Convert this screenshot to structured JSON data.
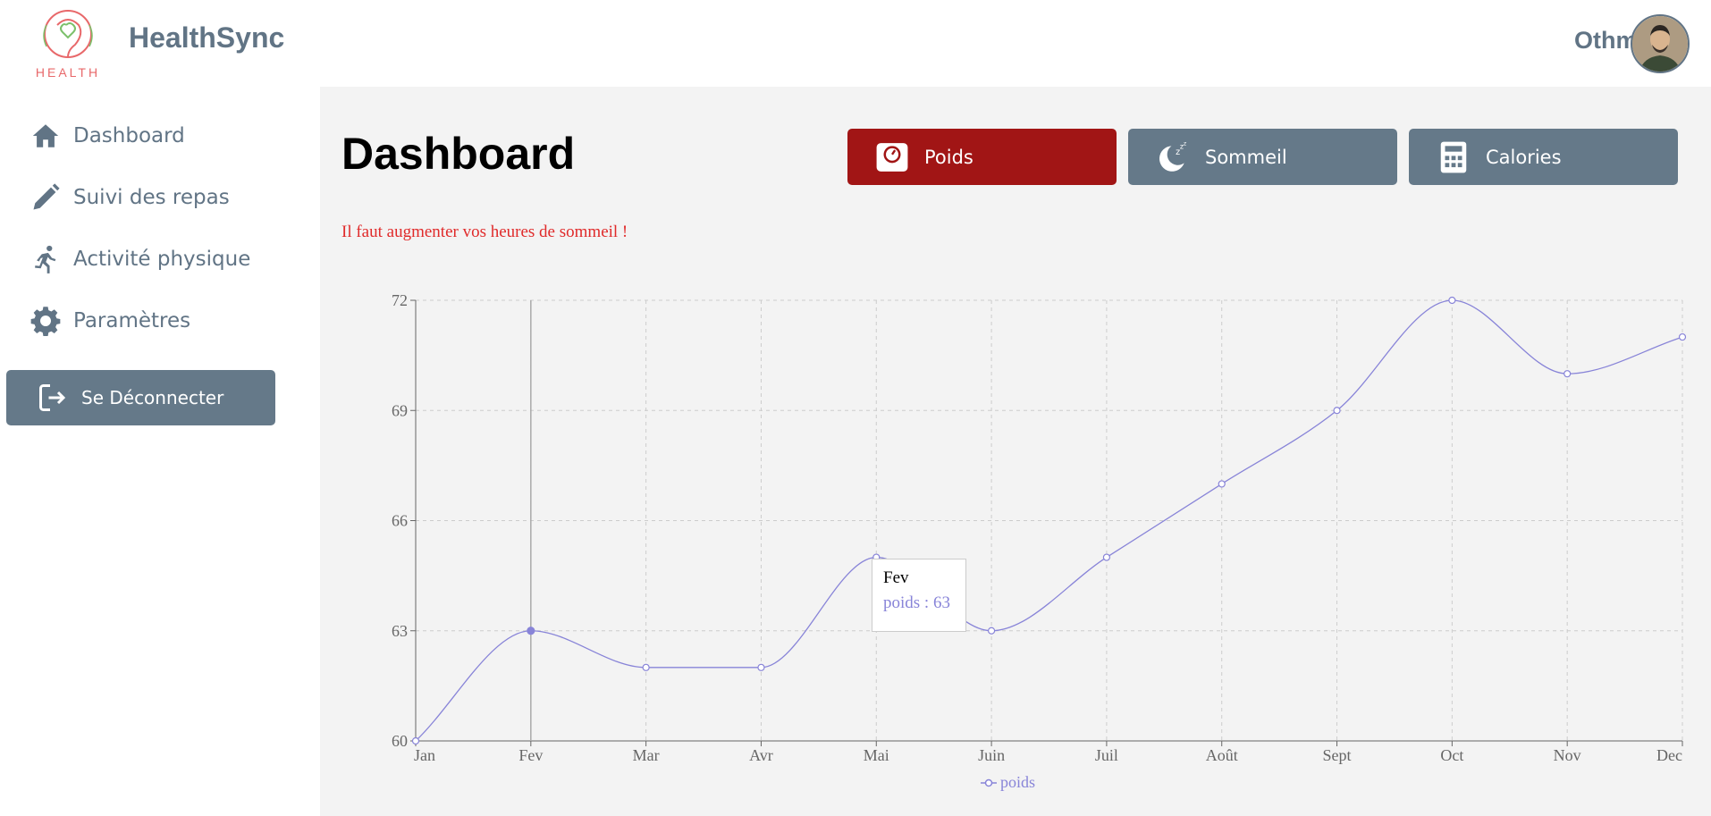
{
  "header": {
    "brand": "HealthSync",
    "logo_text": "HEALTH",
    "username": "Othmane"
  },
  "sidebar": {
    "items": [
      {
        "label": "Dashboard",
        "icon": "home-icon"
      },
      {
        "label": "Suivi des repas",
        "icon": "pencil-icon"
      },
      {
        "label": "Activité physique",
        "icon": "running-icon"
      },
      {
        "label": "Paramètres",
        "icon": "gear-icon"
      }
    ],
    "logout_label": "Se Déconnecter"
  },
  "main": {
    "title": "Dashboard",
    "buttons": [
      {
        "label": "Poids",
        "icon": "scale-icon",
        "color": "#a11515"
      },
      {
        "label": "Sommeil",
        "icon": "moon-icon",
        "color": "#657989"
      },
      {
        "label": "Calories",
        "icon": "calculator-icon",
        "color": "#657989"
      }
    ],
    "alert": "Il faut augmenter vos heures de sommeil !"
  },
  "chart_data": {
    "type": "line",
    "categories": [
      "Jan",
      "Fev",
      "Mar",
      "Avr",
      "Mai",
      "Juin",
      "Juil",
      "Août",
      "Sept",
      "Oct",
      "Nov",
      "Dec"
    ],
    "series": [
      {
        "name": "poids",
        "values": [
          60,
          63,
          62,
          62,
          65,
          63,
          65,
          67,
          69,
          72,
          70,
          71
        ],
        "color": "#8884d8"
      }
    ],
    "yticks": [
      60,
      63,
      66,
      69,
      72
    ],
    "ylim": [
      60,
      72
    ],
    "grid": true,
    "legend": "bottom",
    "active_index": 1,
    "tooltip": {
      "title": "Fev",
      "label": "poids : 63"
    }
  }
}
